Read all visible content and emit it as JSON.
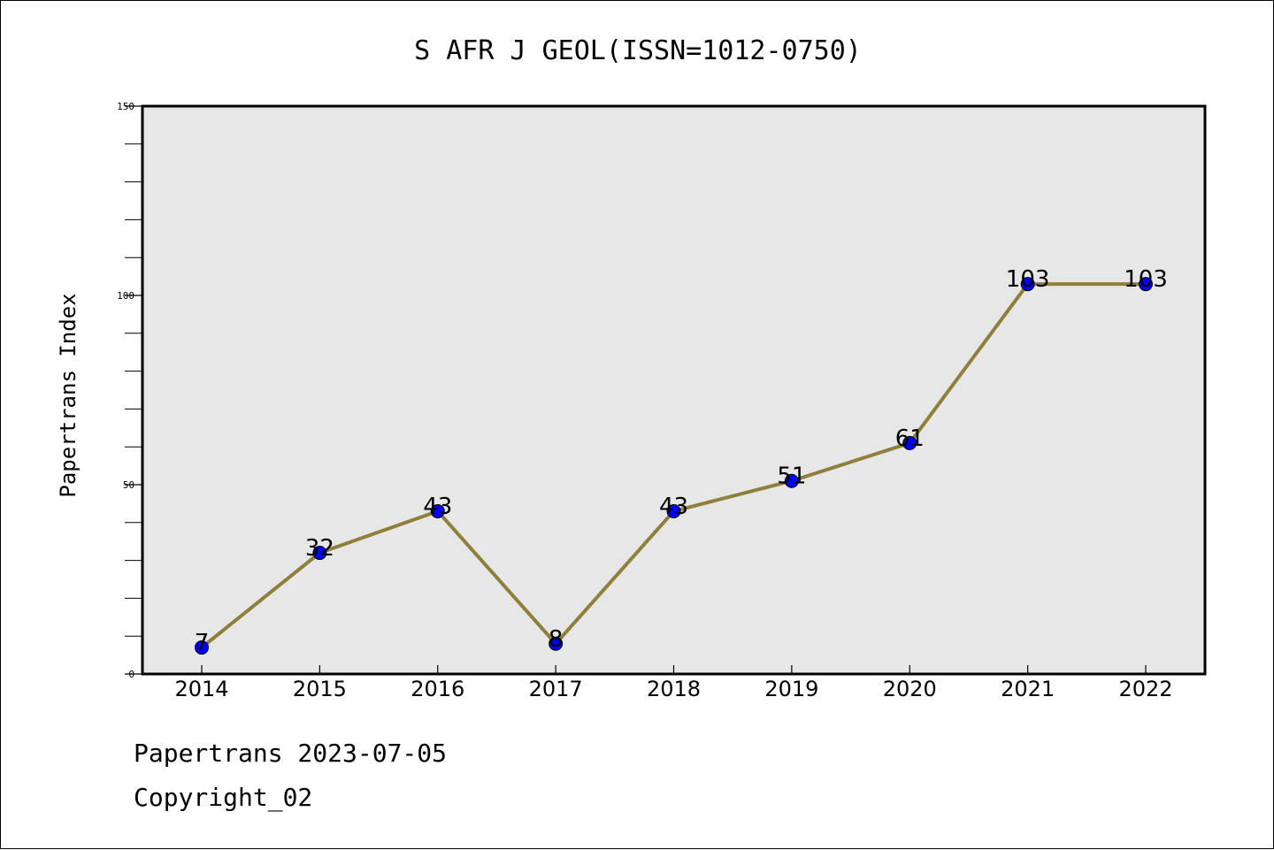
{
  "chart_data": {
    "type": "line",
    "title": "S AFR J GEOL(ISSN=1012-0750)",
    "xlabel": "",
    "ylabel": "Papertrans Index",
    "categories": [
      "2014",
      "2015",
      "2016",
      "2017",
      "2018",
      "2019",
      "2020",
      "2021",
      "2022"
    ],
    "values": [
      7,
      32,
      43,
      8,
      43,
      51,
      61,
      103,
      103
    ],
    "data_labels": [
      "7",
      "32",
      "43",
      "8",
      "43",
      "51",
      "61",
      "103",
      "103"
    ],
    "ylim": [
      0,
      150
    ],
    "yticks": [
      0,
      50,
      100,
      150
    ],
    "yticklabels": [
      "0",
      "50",
      "100",
      "150"
    ],
    "y_minor_step": 10,
    "grid": false,
    "line_color": "#8f7f3a",
    "marker_color": "#0000ff",
    "plot_background": "#e7e7e7"
  },
  "footer": {
    "date_line": "Papertrans 2023-07-05",
    "copyright_line": "Copyright_02"
  }
}
